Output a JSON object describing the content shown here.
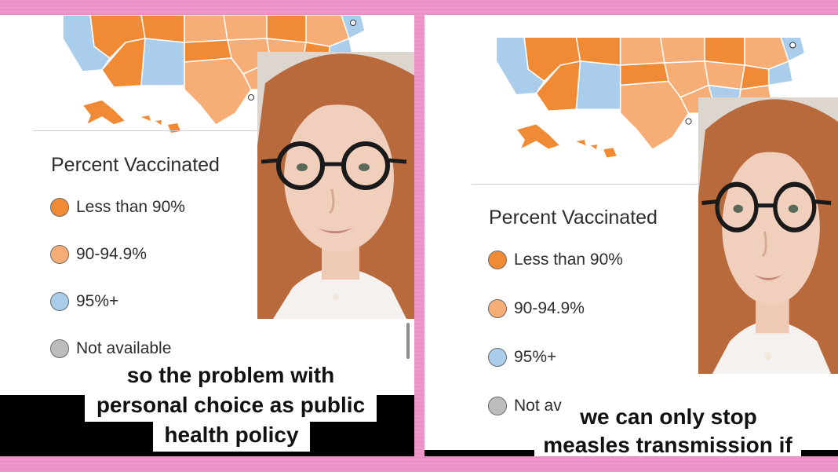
{
  "colors": {
    "frame_pink": "#ec91c6",
    "less_than_90": "#f08a35",
    "between_90_94_9": "#f6ae76",
    "over_95": "#a9cdeb",
    "not_available": "#bdbdbd",
    "hair": "#b96a3c",
    "caption_bg": "#ffffff"
  },
  "left_panel": {
    "legend": {
      "title": "Percent Vaccinated",
      "items": [
        {
          "label": "Less than 90%",
          "color_key": "less_than_90"
        },
        {
          "label": "90-94.9%",
          "color_key": "between_90_94_9"
        },
        {
          "label": "95%+",
          "color_key": "over_95"
        },
        {
          "label": "Not available",
          "color_key": "not_available"
        }
      ]
    },
    "caption": [
      "so the problem with",
      "personal choice as public",
      "health policy"
    ]
  },
  "right_panel": {
    "legend": {
      "title": "Percent Vaccinated",
      "items": [
        {
          "label": "Less than 90%",
          "color_key": "less_than_90"
        },
        {
          "label": "90-94.9%",
          "color_key": "between_90_94_9"
        },
        {
          "label": "95%+",
          "color_key": "over_95"
        },
        {
          "label": "Not av",
          "color_key": "not_available"
        }
      ]
    },
    "caption": [
      "we can only stop",
      "measles transmission if"
    ]
  },
  "icons": {
    "map": "us-states-map-icon",
    "person": "person-face-icon"
  }
}
